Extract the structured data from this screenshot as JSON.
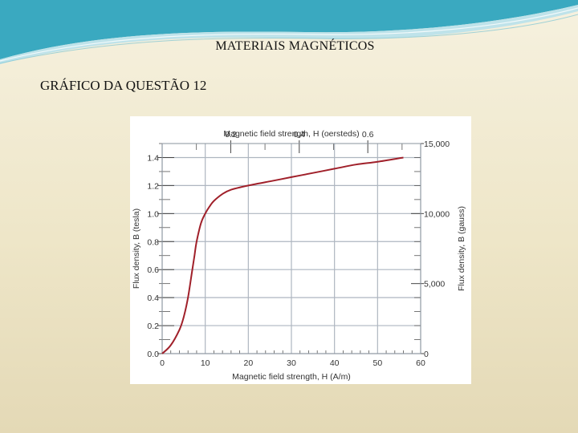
{
  "slide": {
    "title": "MATERIAIS MAGNÉTICOS",
    "subtitle": "GRÁFICO DA QUESTÃO 12"
  },
  "colors": {
    "curve": "#a0202a",
    "grid": "#aeb6c0",
    "wave_dark": "#2fa3bb",
    "wave_light": "#b9e2ea"
  },
  "chart_data": {
    "type": "line",
    "xlabel_bottom": "Magnetic field strength, H (A/m)",
    "xlabel_top": "Magnetic field strength, H (oersteds)",
    "ylabel_left": "Flux density, B (tesla)",
    "ylabel_right": "Flux density, B (gauss)",
    "xlim": [
      0,
      60
    ],
    "ylim": [
      0,
      1.5
    ],
    "x_ticks": [
      0,
      10,
      20,
      30,
      40,
      50,
      60
    ],
    "x_tick_labels": [
      "0",
      "10",
      "20",
      "30",
      "40",
      "50",
      "60"
    ],
    "y_ticks": [
      0,
      0.2,
      0.4,
      0.6,
      0.8,
      1.0,
      1.2,
      1.4
    ],
    "y_tick_labels": [
      "0.0",
      "0.2",
      "0.4",
      "0.6",
      "0.8",
      "1.0",
      "1.2",
      "1.4"
    ],
    "top_ticks": [
      0.2,
      0.4,
      0.6
    ],
    "top_tick_labels": [
      "0.2",
      "0.4",
      "0.6"
    ],
    "right_ticks": [
      0,
      5000,
      10000,
      15000
    ],
    "right_tick_labels": [
      "0",
      "5,000",
      "10,000",
      "15,000"
    ],
    "grid": true,
    "series": [
      {
        "x": [
          0,
          2,
          4,
          5,
          6,
          7,
          7.5,
          8,
          9,
          10,
          11,
          12,
          14,
          16,
          20,
          25,
          30,
          35,
          40,
          45,
          50,
          56
        ],
        "y": [
          0,
          0.06,
          0.17,
          0.26,
          0.4,
          0.6,
          0.7,
          0.8,
          0.93,
          1.0,
          1.05,
          1.09,
          1.14,
          1.17,
          1.2,
          1.23,
          1.26,
          1.29,
          1.32,
          1.35,
          1.37,
          1.4
        ]
      }
    ]
  }
}
